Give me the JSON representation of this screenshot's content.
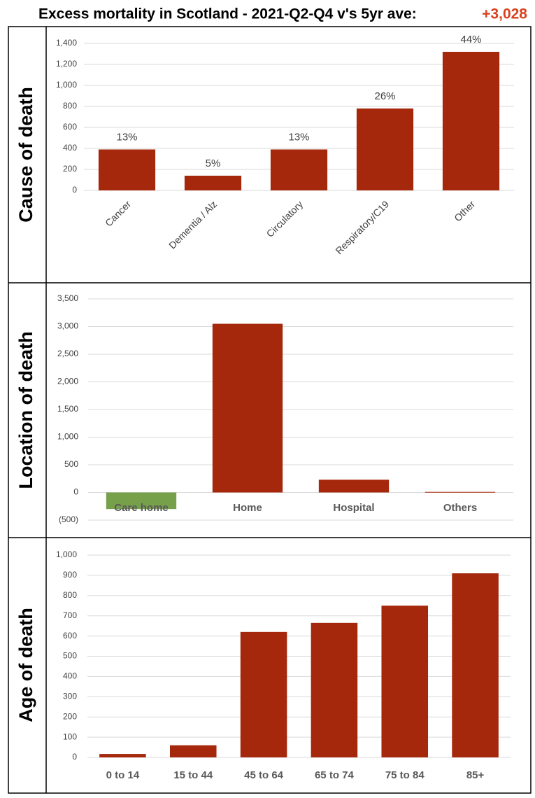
{
  "title": "Excess mortality in Scotland - 2021-Q2-Q4 v's 5yr ave:",
  "title_value": "+3,028",
  "chart_data": [
    {
      "type": "bar",
      "ylabel": "Cause of death",
      "categories": [
        "Cancer",
        "Dementia / Alz",
        "Circulatory",
        "Respiratory/C19",
        "Other"
      ],
      "values": [
        390,
        140,
        390,
        780,
        1320
      ],
      "data_labels": [
        "13%",
        "5%",
        "13%",
        "26%",
        "44%"
      ],
      "color": "#a5280c",
      "ylim": [
        0,
        1400
      ],
      "yticks": [
        0,
        200,
        400,
        600,
        800,
        {
          "value": 1000,
          "label": "1,000"
        },
        {
          "value": 1200,
          "label": "1,200"
        },
        {
          "value": 1400,
          "label": "1,400"
        }
      ],
      "grid": true
    },
    {
      "type": "bar",
      "ylabel": "Location of death",
      "categories": [
        "Care home",
        "Home",
        "Hospital",
        "Others"
      ],
      "values": [
        -300,
        3050,
        230,
        10
      ],
      "colors": [
        "#77a04a",
        "#a5280c",
        "#a5280c",
        "#a5280c"
      ],
      "ylim": [
        -500,
        3500
      ],
      "yticks": [
        {
          "value": -500,
          "label": "(500)"
        },
        0,
        500,
        {
          "value": 1000,
          "label": "1,000"
        },
        {
          "value": 1500,
          "label": "1,500"
        },
        {
          "value": 2000,
          "label": "2,000"
        },
        {
          "value": 2500,
          "label": "2,500"
        },
        {
          "value": 3000,
          "label": "3,000"
        },
        {
          "value": 3500,
          "label": "3,500"
        }
      ],
      "negative_tick_color": "#c00000",
      "grid": true
    },
    {
      "type": "bar",
      "ylabel": "Age of death",
      "categories": [
        "0 to 14",
        "15 to 44",
        "45 to 64",
        "65 to 74",
        "75 to 84",
        "85+"
      ],
      "values": [
        17,
        60,
        620,
        665,
        750,
        910
      ],
      "color": "#a5280c",
      "ylim": [
        0,
        1000
      ],
      "yticks": [
        0,
        100,
        200,
        300,
        400,
        500,
        600,
        700,
        800,
        900,
        {
          "value": 1000,
          "label": "1,000"
        }
      ],
      "grid": true
    }
  ]
}
